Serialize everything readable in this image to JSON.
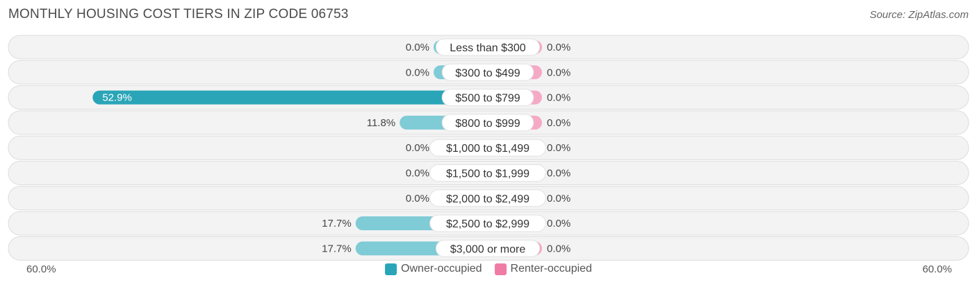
{
  "title": "MONTHLY HOUSING COST TIERS IN ZIP CODE 06753",
  "source": "Source: ZipAtlas.com",
  "axis": {
    "left_label": "60.0%",
    "right_label": "60.0%"
  },
  "legend": [
    {
      "name": "Owner-occupied",
      "color": "#2aa5b8"
    },
    {
      "name": "Renter-occupied",
      "color": "#f07ca6"
    }
  ],
  "chart_data": {
    "type": "bar",
    "orientation": "horizontal-diverging",
    "max": 60.0,
    "categories": [
      "Less than $300",
      "$300 to $499",
      "$500 to $799",
      "$800 to $999",
      "$1,000 to $1,499",
      "$1,500 to $1,999",
      "$2,000 to $2,499",
      "$2,500 to $2,999",
      "$3,000 or more"
    ],
    "series": [
      {
        "name": "Owner-occupied",
        "color": "#2aa5b8",
        "light_color": "#7fcbd6",
        "values": [
          0.0,
          0.0,
          52.9,
          11.8,
          0.0,
          0.0,
          0.0,
          17.7,
          17.7
        ],
        "labels": [
          "0.0%",
          "0.0%",
          "52.9%",
          "11.8%",
          "0.0%",
          "0.0%",
          "0.0%",
          "17.7%",
          "17.7%"
        ]
      },
      {
        "name": "Renter-occupied",
        "color": "#f07ca6",
        "light_color": "#f6a9c5",
        "values": [
          0.0,
          0.0,
          0.0,
          0.0,
          0.0,
          0.0,
          0.0,
          0.0,
          0.0
        ],
        "labels": [
          "0.0%",
          "0.0%",
          "0.0%",
          "0.0%",
          "0.0%",
          "0.0%",
          "0.0%",
          "0.0%",
          "0.0%"
        ]
      }
    ]
  }
}
